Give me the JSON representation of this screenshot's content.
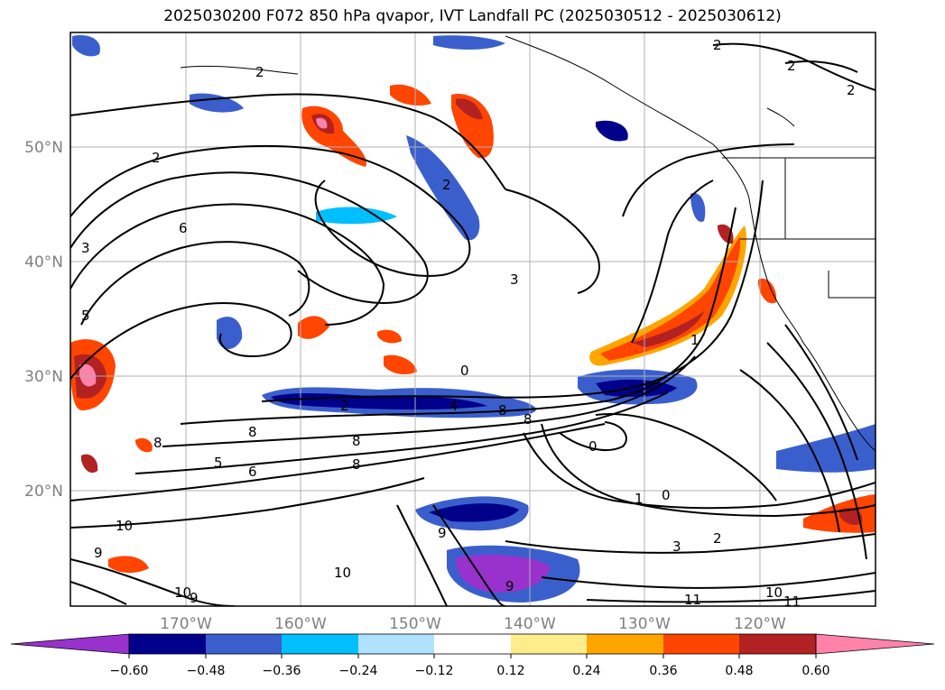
{
  "title": "2025030200 F072 850 hPa qvapor, IVT Landfall PC (2025030512 - 2025030612)",
  "map": {
    "lon_ticks": [
      "170°W",
      "160°W",
      "150°W",
      "140°W",
      "130°W",
      "120°W"
    ],
    "lat_ticks": [
      "50°N",
      "40°N",
      "30°N",
      "20°N"
    ],
    "grid": true
  },
  "contour_labels": [
    "2",
    "2",
    "2",
    "2",
    "2",
    "2",
    "3",
    "3",
    "5",
    "5",
    "6",
    "6",
    "8",
    "8",
    "8",
    "8",
    "9",
    "9",
    "9",
    "9",
    "10",
    "10",
    "10",
    "10",
    "11",
    "11",
    "0",
    "0",
    "0",
    "1",
    "1",
    "2",
    "3",
    "2",
    "4",
    "8",
    "8"
  ],
  "colorbar": {
    "ticks": [
      "−0.60",
      "−0.48",
      "−0.36",
      "−0.24",
      "−0.12",
      "0.12",
      "0.24",
      "0.36",
      "0.48",
      "0.60"
    ],
    "colors": [
      "#9932cc",
      "#00008b",
      "#3a5fcd",
      "#00bfff",
      "#b0e2ff",
      "#ffffff",
      "#ffec8b",
      "#ffa500",
      "#ff4500",
      "#b22222",
      "#ff82ab"
    ],
    "extend": "both"
  },
  "chart_data": {
    "type": "heatmap",
    "title": "2025030200 F072 850 hPa qvapor, IVT Landfall PC (2025030512 - 2025030612)",
    "variable_filled": "850 hPa qvapor (shaded)",
    "variable_contoured": "IVT (black contours)",
    "lon_range": [
      "180°W",
      "110°W"
    ],
    "lat_range": [
      "10°N",
      "60°N"
    ],
    "colorbar_levels": [
      -0.6,
      -0.48,
      -0.36,
      -0.24,
      -0.12,
      0.12,
      0.24,
      0.36,
      0.48,
      0.6
    ],
    "colorbar_colors": [
      "#9932cc",
      "#00008b",
      "#3a5fcd",
      "#00bfff",
      "#b0e2ff",
      "#ffffff",
      "#ffec8b",
      "#ffa500",
      "#ff4500",
      "#b22222",
      "#ff82ab"
    ]
  }
}
